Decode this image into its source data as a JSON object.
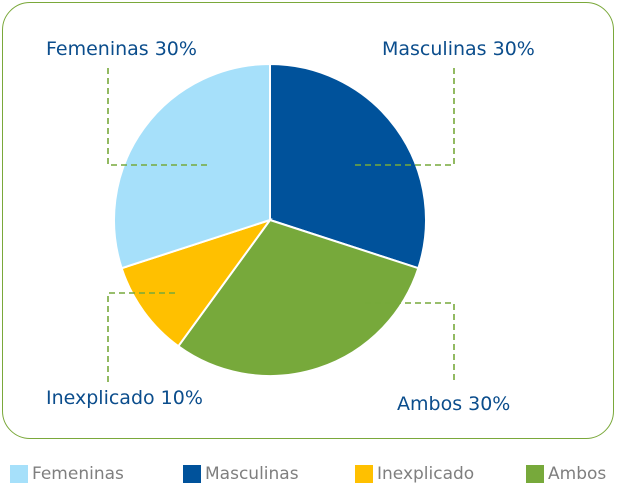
{
  "chart_data": {
    "type": "pie",
    "slices": [
      {
        "label": "Masculinas",
        "value": 30,
        "color": "#00529b"
      },
      {
        "label": "Ambos",
        "value": 30,
        "color": "#77a93b"
      },
      {
        "label": "Inexplicado",
        "value": 10,
        "color": "#ffc000"
      },
      {
        "label": "Femeninas",
        "value": 30,
        "color": "#a6e0fa"
      }
    ],
    "data_labels": {
      "femeninas": "Femeninas 30%",
      "masculinas": "Masculinas 30%",
      "inexplicado": "Inexplicado 10%",
      "ambos": "Ambos 30%"
    },
    "legend": [
      {
        "label": "Femeninas",
        "color": "#a6e0fa"
      },
      {
        "label": "Masculinas",
        "color": "#00529b"
      },
      {
        "label": "Inexplicado",
        "color": "#ffc000"
      },
      {
        "label": "Ambos",
        "color": "#77a93b"
      }
    ],
    "legend_position": "bottom",
    "leader_line_color": "#77a93b",
    "label_color": "#0b4d8c"
  }
}
